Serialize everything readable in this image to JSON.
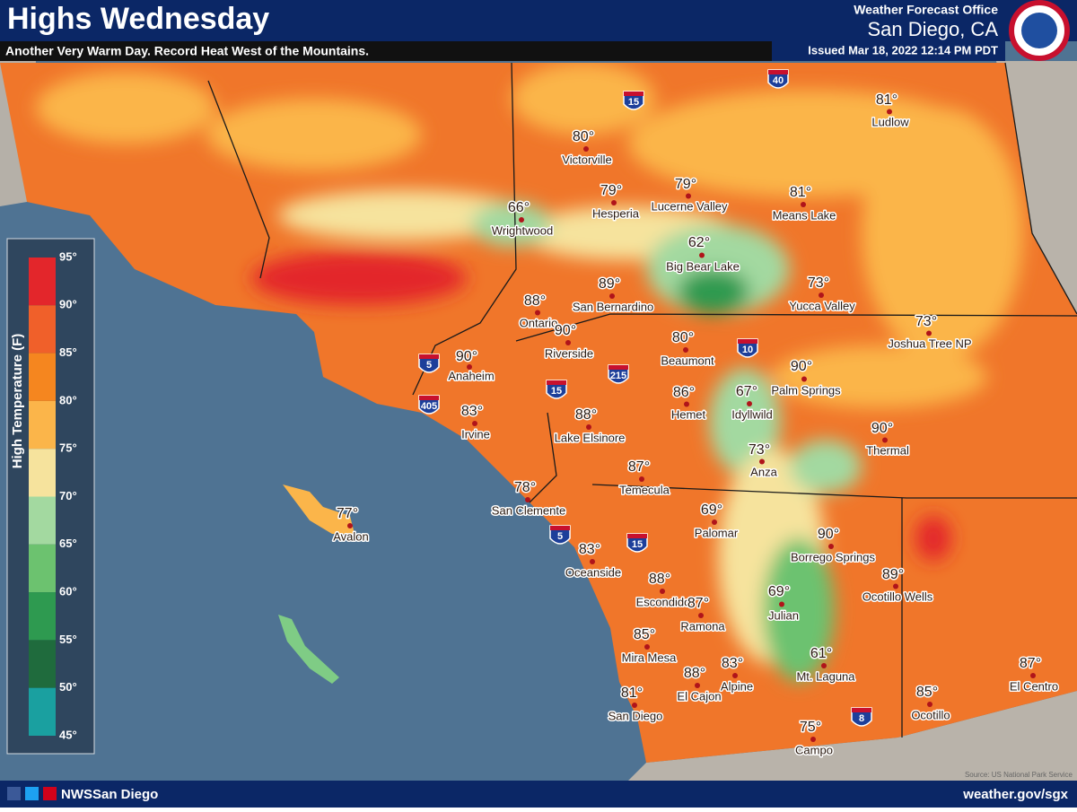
{
  "header": {
    "title": "Highs Wednesday",
    "subtitle": "Another Very Warm Day. Record Heat West of the Mountains.",
    "office": "Weather Forecast Office",
    "location": "San Diego, CA",
    "issued": "Issued Mar 18, 2022 12:14 PM PDT"
  },
  "legend": {
    "title": "High Temperature (F)",
    "ticks": [
      "95°",
      "90°",
      "85°",
      "80°",
      "75°",
      "70°",
      "65°",
      "60°",
      "55°",
      "50°",
      "45°"
    ],
    "colors": [
      "#e3262b",
      "#f0602a",
      "#f5861f",
      "#fbb54a",
      "#f6e39d",
      "#a3d9a0",
      "#6cc26f",
      "#2e9a50",
      "#1f6b3d",
      "#1aa0a0"
    ]
  },
  "cities": [
    {
      "name": "Ludlow",
      "temp": "81°"
    },
    {
      "name": "Victorville",
      "temp": "80°"
    },
    {
      "name": "Hesperia",
      "temp": "79°"
    },
    {
      "name": "Lucerne Valley",
      "temp": "79°"
    },
    {
      "name": "Means Lake",
      "temp": "81°"
    },
    {
      "name": "Wrightwood",
      "temp": "66°"
    },
    {
      "name": "Big Bear Lake",
      "temp": "62°"
    },
    {
      "name": "San Bernardino",
      "temp": "89°"
    },
    {
      "name": "Yucca Valley",
      "temp": "73°"
    },
    {
      "name": "Ontario",
      "temp": "88°"
    },
    {
      "name": "Joshua Tree NP",
      "temp": "73°"
    },
    {
      "name": "Riverside",
      "temp": "90°"
    },
    {
      "name": "Beaumont",
      "temp": "80°"
    },
    {
      "name": "Anaheim",
      "temp": "90°"
    },
    {
      "name": "Palm Springs",
      "temp": "90°"
    },
    {
      "name": "Hemet",
      "temp": "86°"
    },
    {
      "name": "Idyllwild",
      "temp": "67°"
    },
    {
      "name": "Irvine",
      "temp": "83°"
    },
    {
      "name": "Lake Elsinore",
      "temp": "88°"
    },
    {
      "name": "Thermal",
      "temp": "90°"
    },
    {
      "name": "Anza",
      "temp": "73°"
    },
    {
      "name": "Temecula",
      "temp": "87°"
    },
    {
      "name": "San Clemente",
      "temp": "78°"
    },
    {
      "name": "Palomar",
      "temp": "69°"
    },
    {
      "name": "Avalon",
      "temp": "77°"
    },
    {
      "name": "Borrego Springs",
      "temp": "90°"
    },
    {
      "name": "Oceanside",
      "temp": "83°"
    },
    {
      "name": "Ocotillo Wells",
      "temp": "89°"
    },
    {
      "name": "Escondido",
      "temp": "88°"
    },
    {
      "name": "Julian",
      "temp": "69°"
    },
    {
      "name": "Ramona",
      "temp": "87°"
    },
    {
      "name": "Mira Mesa",
      "temp": "85°"
    },
    {
      "name": "Mt. Laguna",
      "temp": "61°"
    },
    {
      "name": "Alpine",
      "temp": "83°"
    },
    {
      "name": "El Cajon",
      "temp": "88°"
    },
    {
      "name": "El Centro",
      "temp": "87°"
    },
    {
      "name": "San Diego",
      "temp": "81°"
    },
    {
      "name": "Ocotillo",
      "temp": "85°"
    },
    {
      "name": "Campo",
      "temp": "75°"
    }
  ],
  "highways": [
    "15",
    "40",
    "5",
    "405",
    "15",
    "215",
    "10",
    "5",
    "15",
    "8"
  ],
  "footer": {
    "social": "NWSSan Diego",
    "website": "weather.gov/sgx",
    "source": "Source: US National Park Service"
  }
}
